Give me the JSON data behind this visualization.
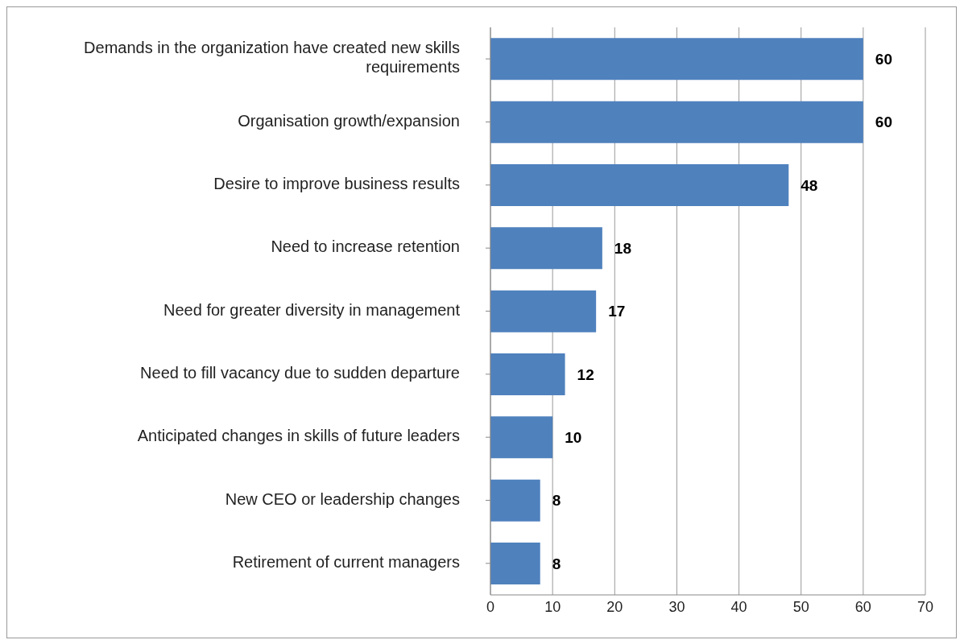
{
  "chart_data": {
    "type": "bar",
    "orientation": "horizontal",
    "categories": [
      "Demands in the organization have created new skills requirements",
      "Organisation growth/expansion",
      "Desire to improve business results",
      "Need to increase retention",
      "Need for greater diversity in management",
      "Need to fill vacancy due to sudden departure",
      "Anticipated changes in skills of future leaders",
      "New CEO or leadership changes",
      "Retirement of current managers"
    ],
    "values": [
      60,
      60,
      48,
      18,
      17,
      12,
      10,
      8,
      8
    ],
    "color": "#4f81bd",
    "xlim": [
      0,
      70
    ],
    "xticks": [
      0,
      10,
      20,
      30,
      40,
      50,
      60,
      70
    ],
    "grid": "x",
    "data_labels": true
  }
}
